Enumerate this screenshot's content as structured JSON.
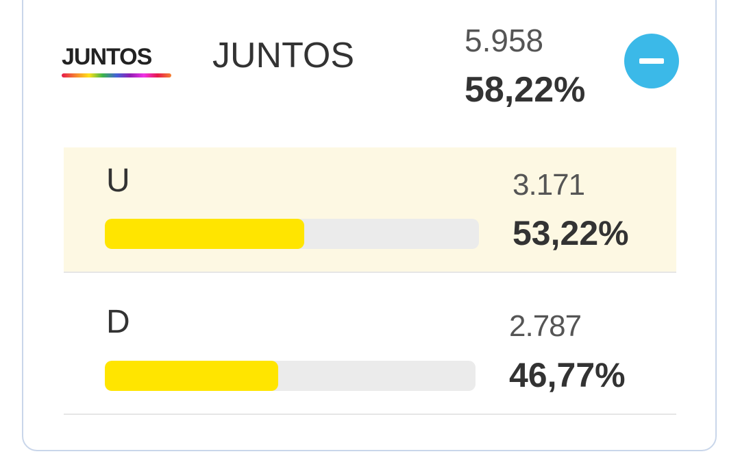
{
  "party": {
    "logo_text": "JUNTOS",
    "name": "JUNTOS",
    "votes": "5.958",
    "share": "58,22%"
  },
  "lists": [
    {
      "name": "U",
      "votes": "3.171",
      "share": {
        "value": 53.22,
        "label": "53,22%"
      },
      "bar_color": "#ffe500",
      "highlighted": true
    },
    {
      "name": "D",
      "votes": "2.787",
      "share": {
        "value": 46.77,
        "label": "46,77%"
      },
      "bar_color": "#ffe500",
      "highlighted": false
    }
  ]
}
